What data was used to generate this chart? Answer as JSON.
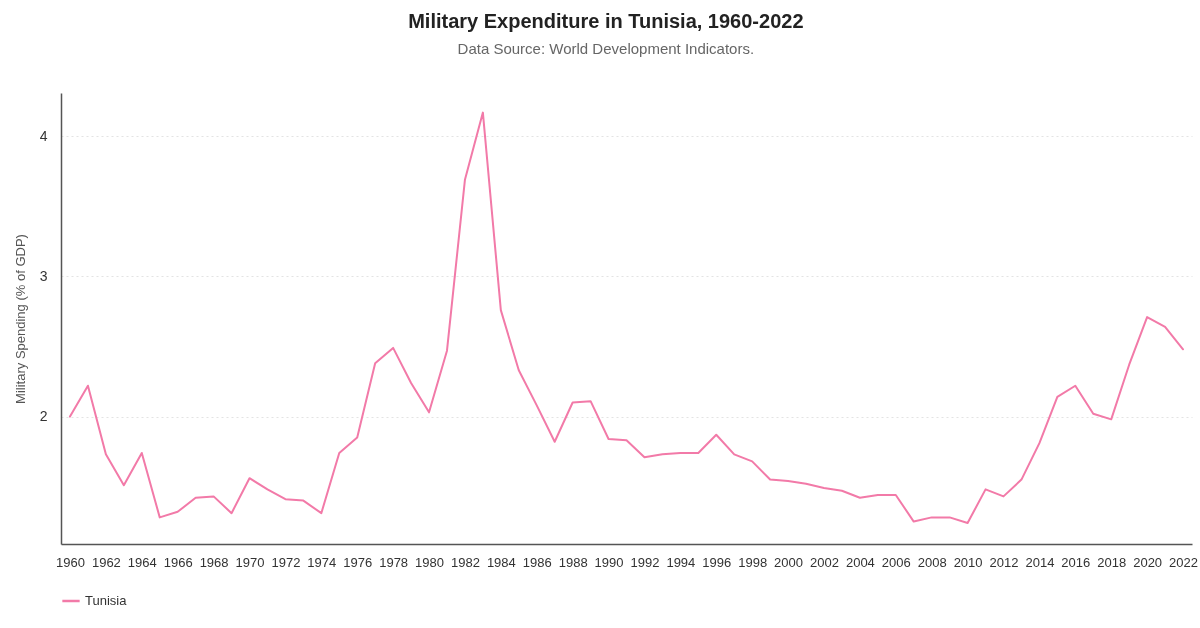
{
  "chart_data": {
    "type": "line",
    "title": "Military Expenditure in Tunisia, 1960-2022",
    "subtitle": "Data Source: World Development Indicators.",
    "ylabel": "Military Spending (% of GDP)",
    "categories": [
      "1960",
      null,
      "1962",
      null,
      "1964",
      null,
      "1966",
      null,
      "1968",
      null,
      "1970",
      null,
      "1972",
      null,
      "1974",
      null,
      "1976",
      null,
      "1978",
      null,
      "1980",
      null,
      "1982",
      null,
      "1984",
      null,
      "1986",
      null,
      "1988",
      null,
      "1990",
      null,
      "1992",
      null,
      "1994",
      null,
      "1996",
      null,
      "1998",
      null,
      "2000",
      null,
      "2002",
      null,
      "2004",
      null,
      "2006",
      null,
      "2008",
      null,
      "2010",
      null,
      "2012",
      null,
      "2014",
      null,
      "2016",
      null,
      "2018",
      null,
      "2020",
      null,
      "2022"
    ],
    "series": [
      {
        "name": "Tunisia",
        "color": "#f27aa8",
        "values": [
          2.0,
          2.22,
          1.73,
          1.51,
          1.74,
          1.28,
          1.32,
          1.42,
          1.43,
          1.31,
          1.56,
          1.48,
          1.41,
          1.4,
          1.31,
          1.74,
          1.85,
          2.38,
          2.49,
          2.24,
          2.03,
          2.47,
          3.69,
          4.17,
          2.76,
          2.33,
          2.08,
          1.82,
          2.1,
          2.11,
          1.84,
          1.83,
          1.71,
          1.73,
          1.74,
          1.74,
          1.87,
          1.73,
          1.68,
          1.55,
          1.54,
          1.52,
          1.49,
          1.47,
          1.42,
          1.44,
          1.44,
          1.25,
          1.28,
          1.28,
          1.24,
          1.48,
          1.43,
          1.55,
          1.81,
          2.14,
          2.22,
          2.02,
          1.98,
          2.37,
          2.71,
          2.64,
          2.48
        ]
      }
    ],
    "ylim": [
      1.09,
      4.31
    ],
    "yticks": [
      2,
      3,
      4
    ],
    "grid": "y",
    "legend": "bottom"
  }
}
